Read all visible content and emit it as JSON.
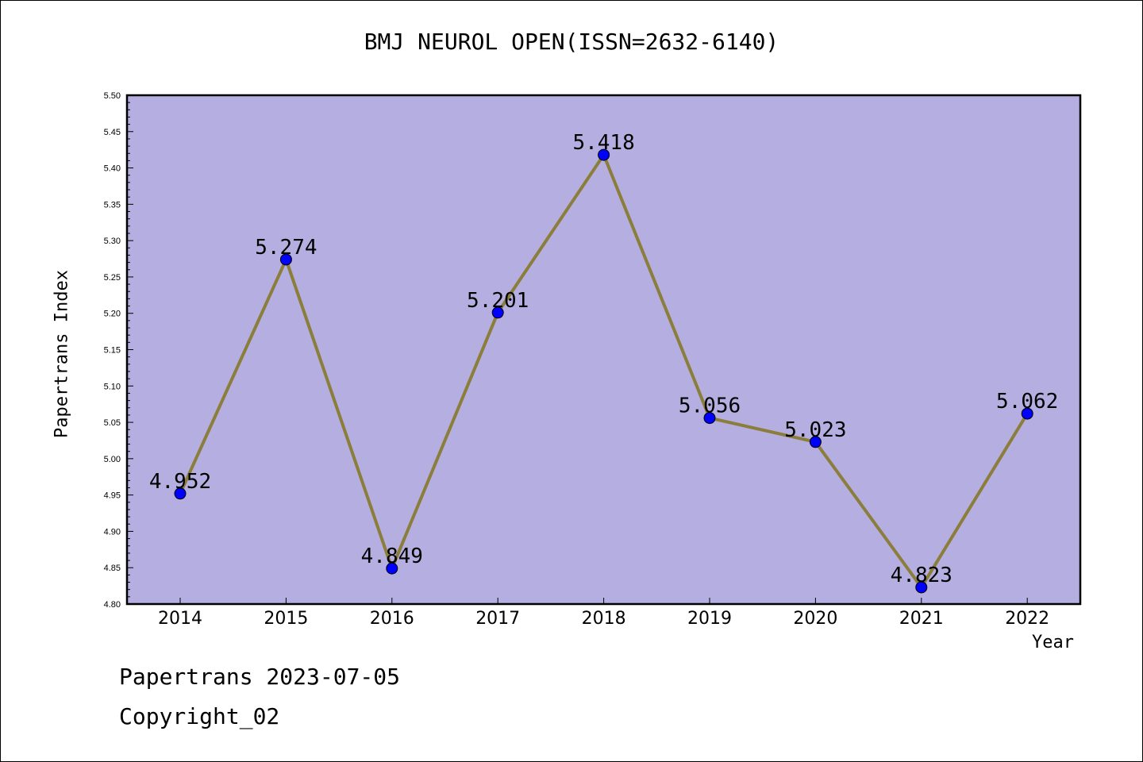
{
  "title": "BMJ NEUROL OPEN(ISSN=2632-6140)",
  "footer": {
    "line1": "Papertrans 2023-07-05",
    "line2": "Copyright_02"
  },
  "chart_data": {
    "type": "line",
    "title": "BMJ NEUROL OPEN(ISSN=2632-6140)",
    "xlabel": "Year",
    "ylabel": "Papertrans Index",
    "categories": [
      "2014",
      "2015",
      "2016",
      "2017",
      "2018",
      "2019",
      "2020",
      "2021",
      "2022"
    ],
    "series": [
      {
        "values": [
          4.952,
          5.274,
          4.849,
          5.201,
          5.418,
          5.056,
          5.023,
          4.823,
          5.062
        ],
        "labels": [
          "4.952",
          "5.274",
          "4.849",
          "5.201",
          "5.418",
          "5.056",
          "5.023",
          "4.823",
          "5.062"
        ]
      }
    ],
    "ylim": [
      4.8,
      5.5
    ],
    "yticks": [
      "4.80",
      "4.85",
      "4.90",
      "4.95",
      "5.00",
      "5.05",
      "5.10",
      "5.15",
      "5.20",
      "5.25",
      "5.30",
      "5.35",
      "5.40",
      "5.45",
      "5.50"
    ],
    "grid": false,
    "colors": {
      "plot_background": "#b5aee1",
      "line": "#8b7d3a",
      "marker": "#0000ff"
    }
  }
}
